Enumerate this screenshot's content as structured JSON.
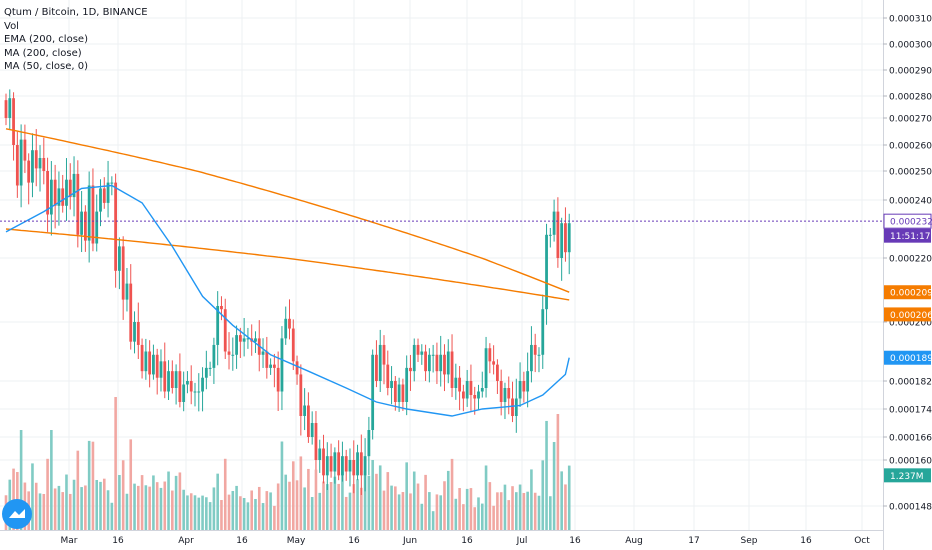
{
  "legend": {
    "title": "Qtum / Bitcoin, 1D, BINANCE",
    "vol": "Vol",
    "ema": "EMA (200, close)",
    "ma200": "MA (200, close)",
    "ma50": "MA (50, close, 0)"
  },
  "logo_icon": "tradingview-cloud-icon",
  "chart_data": {
    "type": "candlestick",
    "x_ticks": [
      "Mar",
      "16",
      "Apr",
      "16",
      "May",
      "16",
      "Jun",
      "16",
      "Jul",
      "16",
      "Aug",
      "17",
      "Sep",
      "16",
      "Oct"
    ],
    "y_ticks": [
      "0.0003100",
      "0.0003000",
      "0.0002900",
      "0.0002800",
      "0.0002700",
      "0.0002600",
      "0.0002500",
      "0.0002400",
      "0.0002200",
      "0.0002000",
      "0.0001820",
      "0.0001740",
      "0.0001660",
      "0.0001600",
      "0.0001480"
    ],
    "y_tick_values": [
      0.00031,
      0.0003,
      0.00029,
      0.00028,
      0.00027,
      0.00026,
      0.00025,
      0.00024,
      0.00022,
      0.0002,
      0.000182,
      0.000174,
      0.000166,
      0.00016,
      0.000148
    ],
    "badges": [
      {
        "label": "0.0002327",
        "value": 0.0002327,
        "color": "#673ab7",
        "outline": true
      },
      {
        "label": "11:51:17",
        "value": 0.0002327,
        "color": "#673ab7",
        "offset_row": 1
      },
      {
        "label": "0.0002093",
        "value": 0.0002093,
        "color": "#f57c00"
      },
      {
        "label": "0.0002069",
        "value": 0.0002069,
        "color": "#f57c00",
        "offset_row": 1
      },
      {
        "label": "0.0001891",
        "value": 0.0001891,
        "color": "#2196f3"
      },
      {
        "label": "1.237M",
        "value": 0.000156,
        "color": "#26a69a"
      }
    ],
    "last_price": 0.0002327,
    "closes": [
      0.00027,
      0.000279,
      0.00026,
      0.000245,
      0.000262,
      0.000254,
      0.000246,
      0.000258,
      0.000251,
      0.000255,
      0.00025,
      0.000235,
      0.000247,
      0.000238,
      0.000244,
      0.000238,
      0.000247,
      0.000241,
      0.000249,
      0.000228,
      0.000236,
      0.000226,
      0.000245,
      0.000225,
      0.000236,
      0.000244,
      0.000239,
      0.000246,
      0.000246,
      0.000216,
      0.000224,
      0.000207,
      0.000212,
      0.000194,
      0.0002,
      0.000193,
      0.000185,
      0.000191,
      0.000184,
      0.00019,
      0.000183,
      0.000188,
      0.000179,
      0.000185,
      0.00018,
      0.000185,
      0.000176,
      0.000181,
      0.000182,
      0.000179,
      0.000179,
      0.000179,
      0.000183,
      0.000186,
      0.000186,
      0.000193,
      0.000205,
      0.000204,
      0.000191,
      0.00019,
      0.00019,
      0.000196,
      0.000194,
      0.000195,
      0.000195,
      0.000194,
      0.000195,
      0.00019,
      0.000191,
      0.000186,
      0.000187,
      0.000186,
      0.000179,
      0.000195,
      0.000201,
      0.000198,
      0.000188,
      0.000184,
      0.000172,
      0.000175,
      0.000166,
      0.00017,
      0.00016,
      0.000163,
      0.000156,
      0.000161,
      0.000157,
      0.000162,
      0.000156,
      0.000161,
      0.000157,
      0.00016,
      0.000156,
      0.000162,
      0.000156,
      0.000161,
      0.000168,
      0.00019,
      0.000182,
      0.000193,
      0.000187,
      0.00018,
      0.000182,
      0.000176,
      0.000181,
      0.000176,
      0.000186,
      0.000185,
      0.000193,
      0.00019,
      0.000191,
      0.000185,
      0.00019,
      0.00019,
      0.000185,
      0.00019,
      0.000184,
      0.000191,
      0.00018,
      0.000183,
      0.000179,
      0.000177,
      0.000182,
      0.000178,
      0.000177,
      0.000179,
      0.00018,
      0.000192,
      0.000188,
      0.000187,
      0.000182,
      0.000176,
      0.00018,
      0.000177,
      0.000172,
      0.000177,
      0.000182,
      0.000179,
      0.000185,
      0.000193,
      0.00019,
      0.00019,
      0.000204,
      0.000228,
      0.000228,
      0.000236,
      0.00022,
      0.000232,
      0.000222,
      0.000232
    ],
    "ema200": {
      "start": 0.000266,
      "end": 0.0002093,
      "shape": "concave-down"
    },
    "ma200": {
      "start": 0.00023,
      "end": 0.0002069,
      "shape": "concave-down"
    },
    "ma50": {
      "points": [
        [
          0,
          0.000229
        ],
        [
          10,
          0.000236
        ],
        [
          20,
          0.000244
        ],
        [
          28,
          0.000245
        ],
        [
          36,
          0.000239
        ],
        [
          44,
          0.000224
        ],
        [
          52,
          0.000208
        ],
        [
          60,
          0.000199
        ],
        [
          70,
          0.00019
        ],
        [
          80,
          0.000185
        ],
        [
          90,
          0.00018
        ],
        [
          98,
          0.000176
        ],
        [
          106,
          0.000174
        ],
        [
          118,
          0.000172
        ],
        [
          126,
          0.000174
        ],
        [
          136,
          0.000175
        ],
        [
          142,
          0.000178
        ],
        [
          148,
          0.000184
        ],
        [
          149,
          0.0001891
        ]
      ]
    }
  }
}
